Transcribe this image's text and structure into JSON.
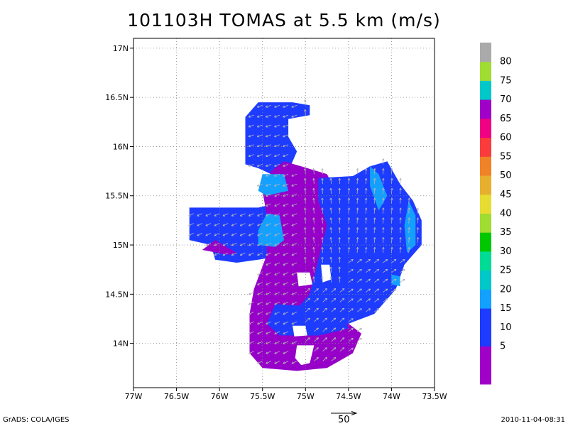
{
  "title": "101103H TOMAS at 5.5 km (m/s)",
  "footer": {
    "credit": "GrADS: COLA/IGES",
    "timestamp": "2010-11-04-08:31",
    "reference_vector_label": "50"
  },
  "map": {
    "lon_range": [
      -77,
      -73.5
    ],
    "lat_range": [
      13.55,
      17.1
    ],
    "x_ticks": [
      {
        "lon": -77,
        "label": "77W"
      },
      {
        "lon": -76.5,
        "label": "76.5W"
      },
      {
        "lon": -76,
        "label": "76W"
      },
      {
        "lon": -75.5,
        "label": "75.5W"
      },
      {
        "lon": -75,
        "label": "75W"
      },
      {
        "lon": -74.5,
        "label": "74.5W"
      },
      {
        "lon": -74,
        "label": "74W"
      },
      {
        "lon": -73.5,
        "label": "73.5W"
      }
    ],
    "y_ticks": [
      {
        "lat": 14,
        "label": "14N"
      },
      {
        "lat": 14.5,
        "label": "14.5N"
      },
      {
        "lat": 15,
        "label": "15N"
      },
      {
        "lat": 15.5,
        "label": "15.5N"
      },
      {
        "lat": 16,
        "label": "16N"
      },
      {
        "lat": 16.5,
        "label": "16.5N"
      },
      {
        "lat": 17,
        "label": "17N"
      }
    ],
    "grid": true,
    "regions": [
      {
        "name": "north-lobe",
        "band": "10-15",
        "color": "#1e3cff",
        "poly": [
          [
            -75.55,
            16.45
          ],
          [
            -75.15,
            16.45
          ],
          [
            -74.95,
            16.42
          ],
          [
            -74.95,
            16.32
          ],
          [
            -75.2,
            16.28
          ],
          [
            -75.2,
            16.1
          ],
          [
            -75.1,
            15.95
          ],
          [
            -75.2,
            15.75
          ],
          [
            -75.4,
            15.72
          ],
          [
            -75.55,
            15.78
          ],
          [
            -75.7,
            15.82
          ],
          [
            -75.7,
            16.3
          ]
        ]
      },
      {
        "name": "west-arm",
        "band": "10-15",
        "color": "#1e3cff",
        "poly": [
          [
            -76.35,
            15.38
          ],
          [
            -75.55,
            15.38
          ],
          [
            -75.2,
            15.45
          ],
          [
            -75.05,
            15.1
          ],
          [
            -75.2,
            14.9
          ],
          [
            -75.55,
            14.85
          ],
          [
            -75.8,
            14.82
          ],
          [
            -76.05,
            14.85
          ],
          [
            -76.1,
            15.0
          ],
          [
            -76.35,
            15.05
          ]
        ]
      },
      {
        "name": "center-core",
        "band": "5-10",
        "color": "#9600c8",
        "poly": [
          [
            -75.25,
            15.85
          ],
          [
            -75.05,
            15.8
          ],
          [
            -74.75,
            15.72
          ],
          [
            -74.65,
            15.55
          ],
          [
            -74.6,
            15.1
          ],
          [
            -74.7,
            14.8
          ],
          [
            -74.6,
            14.55
          ],
          [
            -74.75,
            14.35
          ],
          [
            -74.5,
            14.2
          ],
          [
            -74.35,
            14.1
          ],
          [
            -74.45,
            13.9
          ],
          [
            -74.75,
            13.75
          ],
          [
            -75.1,
            13.72
          ],
          [
            -75.5,
            13.75
          ],
          [
            -75.65,
            13.9
          ],
          [
            -75.65,
            14.3
          ],
          [
            -75.6,
            14.55
          ],
          [
            -75.45,
            14.9
          ],
          [
            -75.45,
            15.3
          ],
          [
            -75.5,
            15.55
          ],
          [
            -75.4,
            15.75
          ]
        ]
      },
      {
        "name": "west-notch",
        "band": "5-10",
        "color": "#9600c8",
        "poly": [
          [
            -76.2,
            14.95
          ],
          [
            -75.9,
            14.9
          ],
          [
            -75.8,
            14.92
          ],
          [
            -76.05,
            15.05
          ]
        ]
      },
      {
        "name": "east-lobe",
        "band": "10-15",
        "color": "#1e3cff",
        "poly": [
          [
            -74.85,
            15.68
          ],
          [
            -74.45,
            15.7
          ],
          [
            -74.25,
            15.8
          ],
          [
            -74.05,
            15.85
          ],
          [
            -73.9,
            15.62
          ],
          [
            -73.75,
            15.45
          ],
          [
            -73.65,
            15.25
          ],
          [
            -73.65,
            15.0
          ],
          [
            -73.85,
            14.8
          ],
          [
            -73.95,
            14.55
          ],
          [
            -74.2,
            14.3
          ],
          [
            -74.5,
            14.2
          ],
          [
            -74.7,
            14.12
          ],
          [
            -74.95,
            14.15
          ],
          [
            -75.1,
            14.35
          ],
          [
            -74.95,
            14.5
          ],
          [
            -74.85,
            14.85
          ],
          [
            -74.75,
            15.2
          ],
          [
            -74.85,
            15.45
          ]
        ]
      },
      {
        "name": "south-arm",
        "band": "10-15",
        "color": "#1e3cff",
        "poly": [
          [
            -75.35,
            14.4
          ],
          [
            -75.0,
            14.38
          ],
          [
            -74.6,
            14.35
          ],
          [
            -74.5,
            14.15
          ],
          [
            -74.85,
            14.08
          ],
          [
            -75.3,
            14.08
          ],
          [
            -75.45,
            14.2
          ]
        ]
      },
      {
        "name": "nw-fast",
        "band": "15-20",
        "color": "#14a0ff",
        "poly": [
          [
            -75.5,
            15.72
          ],
          [
            -75.25,
            15.72
          ],
          [
            -75.2,
            15.55
          ],
          [
            -75.45,
            15.5
          ],
          [
            -75.55,
            15.55
          ]
        ]
      },
      {
        "name": "mid-fast",
        "band": "15-20",
        "color": "#14a0ff",
        "poly": [
          [
            -75.45,
            15.32
          ],
          [
            -75.3,
            15.3
          ],
          [
            -75.25,
            15.05
          ],
          [
            -75.35,
            14.98
          ],
          [
            -75.55,
            15.0
          ],
          [
            -75.55,
            15.15
          ]
        ]
      },
      {
        "name": "ne-fast",
        "band": "15-20",
        "color": "#14a0ff",
        "poly": [
          [
            -74.25,
            15.8
          ],
          [
            -74.15,
            15.72
          ],
          [
            -74.05,
            15.5
          ],
          [
            -74.15,
            15.35
          ],
          [
            -74.25,
            15.6
          ]
        ]
      },
      {
        "name": "e-fast",
        "band": "15-20",
        "color": "#14a0ff",
        "poly": [
          [
            -73.8,
            15.45
          ],
          [
            -73.72,
            15.3
          ],
          [
            -73.72,
            15.0
          ],
          [
            -73.82,
            14.92
          ],
          [
            -73.85,
            15.2
          ]
        ]
      },
      {
        "name": "se-fast",
        "band": "15-20",
        "color": "#14a0ff",
        "poly": [
          [
            -74.0,
            14.7
          ],
          [
            -73.9,
            14.68
          ],
          [
            -73.9,
            14.58
          ],
          [
            -74.0,
            14.6
          ]
        ]
      },
      {
        "name": "hole-1",
        "band": "none",
        "color": "#ffffff",
        "poly": [
          [
            -75.1,
            14.72
          ],
          [
            -74.95,
            14.72
          ],
          [
            -74.92,
            14.6
          ],
          [
            -75.08,
            14.58
          ]
        ]
      },
      {
        "name": "hole-2",
        "band": "none",
        "color": "#ffffff",
        "poly": [
          [
            -75.15,
            14.18
          ],
          [
            -75.0,
            14.18
          ],
          [
            -74.98,
            14.08
          ],
          [
            -75.13,
            14.07
          ]
        ]
      },
      {
        "name": "hole-3",
        "band": "none",
        "color": "#ffffff",
        "poly": [
          [
            -75.1,
            13.98
          ],
          [
            -74.9,
            13.98
          ],
          [
            -74.95,
            13.8
          ],
          [
            -75.05,
            13.78
          ],
          [
            -75.12,
            13.85
          ]
        ]
      },
      {
        "name": "hole-4",
        "band": "none",
        "color": "#ffffff",
        "poly": [
          [
            -74.82,
            14.8
          ],
          [
            -74.72,
            14.8
          ],
          [
            -74.7,
            14.65
          ],
          [
            -74.8,
            14.62
          ]
        ]
      }
    ]
  },
  "colorbar": {
    "levels": [
      {
        "color": "#a000c8"
      },
      {
        "color": "#a000c8",
        "label": "5"
      },
      {
        "color": "#1e3cff",
        "label": "10"
      },
      {
        "color": "#1e3cff",
        "label": "15"
      },
      {
        "color": "#14a0ff",
        "label": "20"
      },
      {
        "color": "#00c8c8",
        "label": "25"
      },
      {
        "color": "#00dc96",
        "label": "30"
      },
      {
        "color": "#00c800",
        "label": "35"
      },
      {
        "color": "#a0dc32",
        "label": "40"
      },
      {
        "color": "#e6dc32",
        "label": "45"
      },
      {
        "color": "#e6af2d",
        "label": "50"
      },
      {
        "color": "#f08228",
        "label": "55"
      },
      {
        "color": "#fa3c3c",
        "label": "60"
      },
      {
        "color": "#f00082",
        "label": "65"
      },
      {
        "color": "#a000c8",
        "label": "70"
      },
      {
        "color": "#00c8c8",
        "label": "75"
      },
      {
        "color": "#a0dc32",
        "label": "80"
      },
      {
        "color": "#aaaaaa"
      }
    ]
  }
}
